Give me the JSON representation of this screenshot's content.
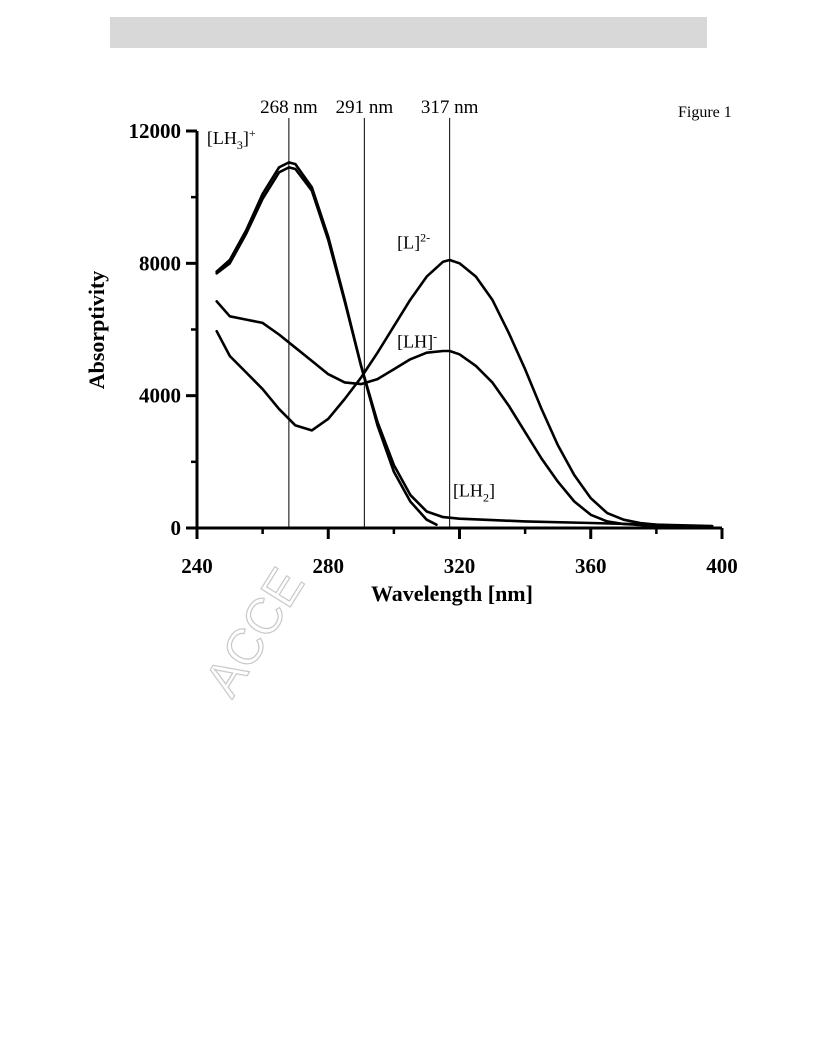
{
  "figure_label": "Figure 1",
  "watermark": "ACCE",
  "colors": {
    "line": "#000000",
    "header_bar": "#d8d8d8",
    "watermark": "#c8c8c8"
  },
  "chart_data": {
    "type": "line",
    "title": "",
    "xlabel": "Wavelength [nm]",
    "ylabel": "Absorptivity",
    "xlim": [
      240,
      400
    ],
    "ylim": [
      0,
      12000
    ],
    "x_ticks": [
      240,
      280,
      320,
      360,
      400
    ],
    "y_ticks": [
      0,
      4000,
      8000,
      12000
    ],
    "grid": false,
    "reference_lines": [
      {
        "x": 268,
        "label": "268 nm"
      },
      {
        "x": 291,
        "label": "291 nm"
      },
      {
        "x": 317,
        "label": "317 nm"
      }
    ],
    "series": [
      {
        "name": "[LH3]+",
        "label_main": "[LH",
        "label_sub": "3",
        "label_close": "]",
        "label_sup": "+",
        "label_at": [
          243,
          11600
        ],
        "x": [
          246,
          250,
          255,
          260,
          265,
          268,
          270,
          275,
          280,
          285,
          290,
          295,
          300,
          305,
          310,
          313
        ],
        "y": [
          7750,
          8100,
          9000,
          10100,
          10900,
          11050,
          11000,
          10300,
          8800,
          6900,
          4900,
          3100,
          1700,
          800,
          250,
          100
        ]
      },
      {
        "name": "[LH2]",
        "label_main": "[LH",
        "label_sub": "2",
        "label_close": "]",
        "label_sup": "",
        "label_at": [
          318,
          950
        ],
        "x": [
          246,
          250,
          255,
          260,
          265,
          268,
          270,
          275,
          280,
          285,
          290,
          295,
          300,
          305,
          310,
          315,
          320,
          330,
          340,
          360,
          380,
          397
        ],
        "y": [
          7700,
          8000,
          8900,
          9950,
          10750,
          10900,
          10850,
          10200,
          8700,
          6850,
          4900,
          3200,
          1900,
          1000,
          500,
          330,
          280,
          240,
          200,
          150,
          100,
          60
        ]
      },
      {
        "name": "[L]2-",
        "label_main": "[L]",
        "label_sub": "",
        "label_close": "",
        "label_sup": "2-",
        "label_at": [
          301,
          8450
        ],
        "x": [
          246,
          250,
          255,
          260,
          265,
          270,
          275,
          280,
          285,
          290,
          295,
          300,
          305,
          310,
          315,
          317,
          320,
          325,
          330,
          335,
          340,
          345,
          350,
          355,
          360,
          365,
          370,
          375,
          380,
          385,
          390,
          397
        ],
        "y": [
          5950,
          5200,
          4700,
          4200,
          3600,
          3100,
          2950,
          3300,
          3900,
          4550,
          5300,
          6100,
          6900,
          7600,
          8050,
          8100,
          8000,
          7600,
          6900,
          5900,
          4800,
          3600,
          2500,
          1600,
          900,
          450,
          250,
          150,
          100,
          70,
          50,
          40
        ]
      },
      {
        "name": "[LH]-",
        "label_main": "[LH]",
        "label_sub": "",
        "label_close": "",
        "label_sup": "-",
        "label_at": [
          301,
          5450
        ],
        "x": [
          246,
          250,
          255,
          260,
          265,
          270,
          275,
          280,
          285,
          290,
          295,
          300,
          305,
          310,
          315,
          317,
          320,
          325,
          330,
          335,
          340,
          345,
          350,
          355,
          360,
          365,
          370,
          380,
          390,
          397
        ],
        "y": [
          6850,
          6400,
          6300,
          6200,
          5850,
          5450,
          5050,
          4650,
          4400,
          4350,
          4500,
          4800,
          5100,
          5300,
          5350,
          5350,
          5250,
          4900,
          4400,
          3700,
          2900,
          2100,
          1400,
          800,
          400,
          200,
          120,
          60,
          40,
          30
        ]
      }
    ]
  }
}
